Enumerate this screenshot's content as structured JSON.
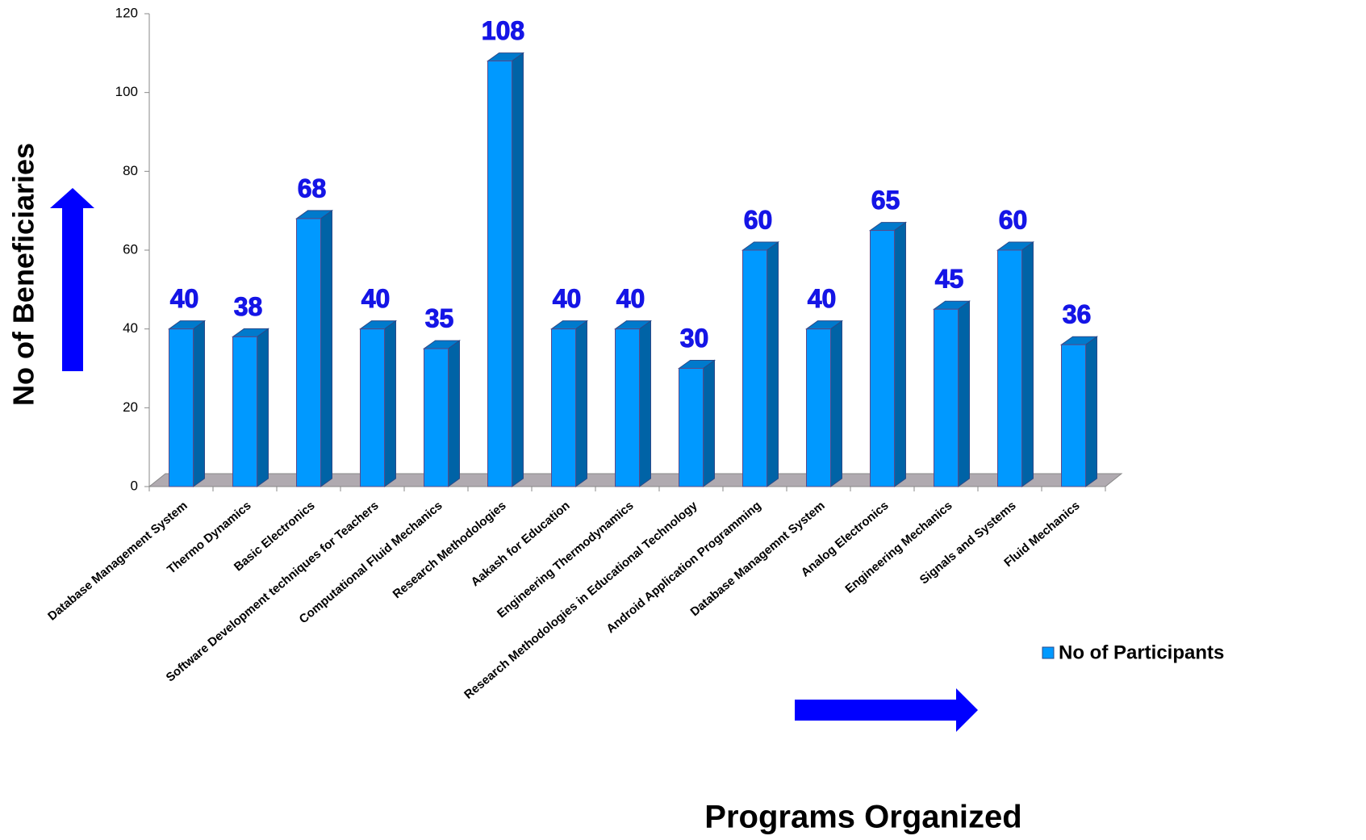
{
  "chart_data": {
    "type": "bar",
    "x_label": "Programs Organized",
    "y_label": "No of Beneficiaries",
    "categories": [
      "Database Management System",
      "Thermo Dynamics",
      "Basic Electronics",
      "Software Development techniques for Teachers",
      "Computational Fluid Mechanics",
      "Research Methodologies",
      "Aakash for Education",
      "Engineering Thermodynamics",
      "Research Methodologies in Educational Technology",
      "Android Application Programming",
      "Database Managemnt System",
      "Analog Electronics",
      "Engineering Mechanics",
      "Signals and Systems",
      "Fluid Mechanics"
    ],
    "series": [
      {
        "name": "No of Participants",
        "color": "#0099ff",
        "values": [
          40,
          38,
          68,
          40,
          35,
          108,
          40,
          40,
          30,
          60,
          40,
          65,
          45,
          60,
          36
        ]
      }
    ],
    "ylim": [
      0,
      120
    ],
    "yticks": [
      0,
      20,
      40,
      60,
      80,
      100,
      120
    ],
    "grid": false,
    "data_labels": true
  }
}
